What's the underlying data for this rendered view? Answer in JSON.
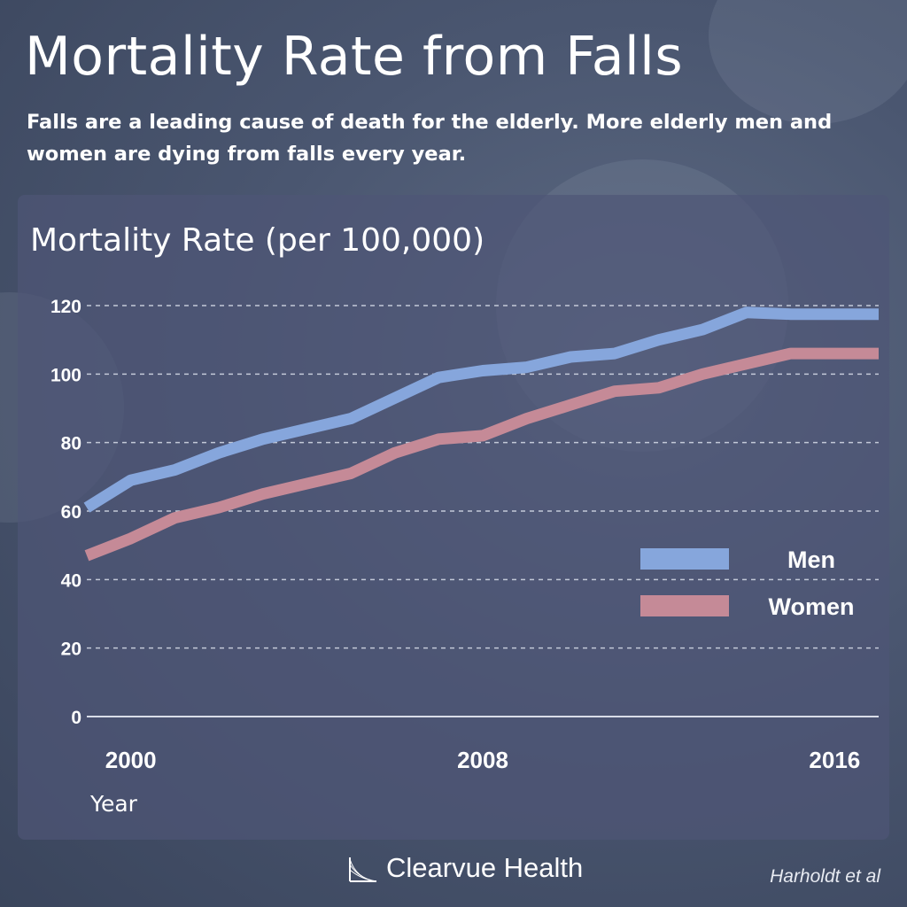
{
  "header": {
    "title": "Mortality Rate from Falls",
    "subtitle": "Falls are a leading cause of death for the elderly. More elderly men and women are dying from falls every year."
  },
  "footer": {
    "brand": "Clearvue Health",
    "credit": "Harholdt et al"
  },
  "chart_data": {
    "type": "line",
    "title": "Mortality Rate (per 100,000)",
    "xlabel": "Year",
    "ylabel": "",
    "x": [
      1999,
      2000,
      2001,
      2002,
      2003,
      2004,
      2005,
      2006,
      2007,
      2008,
      2009,
      2010,
      2011,
      2012,
      2013,
      2014,
      2015,
      2016,
      2017
    ],
    "xticks": [
      2000,
      2008,
      2016
    ],
    "yticks": [
      0,
      20,
      40,
      60,
      80,
      100,
      120
    ],
    "xlim": [
      1999,
      2017
    ],
    "ylim": [
      0,
      120
    ],
    "grid": true,
    "legend_position": "right",
    "series": [
      {
        "name": "Men",
        "color": "#86a6dc",
        "values": [
          61,
          69,
          72,
          77,
          81,
          84,
          87,
          93,
          99,
          101,
          102,
          105,
          106,
          110,
          113,
          118,
          117.5,
          117.5,
          117.5
        ]
      },
      {
        "name": "Women",
        "color": "#c58a97",
        "values": [
          47,
          52,
          58,
          61,
          65,
          68,
          71,
          77,
          81,
          82,
          87,
          91,
          95,
          96,
          100,
          103,
          106,
          106,
          106
        ]
      }
    ]
  }
}
